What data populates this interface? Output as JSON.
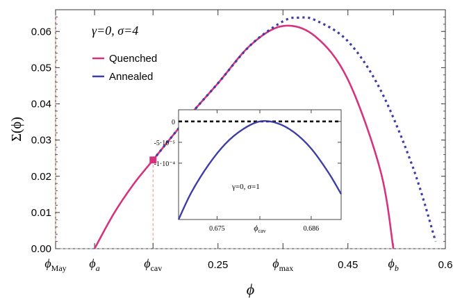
{
  "chart_data": {
    "type": "line",
    "ylabel": "Σ(ϕ)",
    "xlabel": "ϕ",
    "annotation": "γ=0, σ=4",
    "xlim": [
      0.0,
      0.6
    ],
    "ylim": [
      0.0,
      0.066
    ],
    "yticks": [
      0.0,
      0.01,
      0.02,
      0.03,
      0.04,
      0.05,
      0.06
    ],
    "ytick_labels": [
      "0.00",
      "0.01",
      "0.02",
      "0.03",
      "0.04",
      "0.05",
      "0.06"
    ],
    "xticks": [
      {
        "x": 0.0,
        "label": "ϕ",
        "sub": "May"
      },
      {
        "x": 0.06,
        "label": "ϕ",
        "sub": "a"
      },
      {
        "x": 0.15,
        "label": "ϕ",
        "sub": "cav"
      },
      {
        "x": 0.25,
        "label": "0.25",
        "sub": ""
      },
      {
        "x": 0.35,
        "label": "ϕ",
        "sub": "max"
      },
      {
        "x": 0.45,
        "label": "0.45",
        "sub": ""
      },
      {
        "x": 0.52,
        "label": "ϕ",
        "sub": "b"
      },
      {
        "x": 0.6,
        "label": "0.6",
        "sub": ""
      }
    ],
    "legend": {
      "position": "top-left",
      "entries": [
        {
          "name": "Quenched",
          "color": "#d6337f"
        },
        {
          "name": "Annealed",
          "color": "#3d3da8"
        }
      ]
    },
    "series": [
      {
        "name": "Quenched",
        "style": "solid",
        "color": "#d6337f",
        "x": [
          0.06,
          0.09,
          0.12,
          0.15,
          0.2,
          0.25,
          0.3,
          0.35,
          0.4,
          0.45,
          0.5,
          0.52
        ],
        "y": [
          0.0,
          0.0098,
          0.0178,
          0.0245,
          0.0355,
          0.0457,
          0.0562,
          0.0615,
          0.0586,
          0.0467,
          0.0216,
          0.0
        ]
      },
      {
        "name": "Annealed",
        "style": "dotted",
        "color": "#3d3da8",
        "x": [
          0.15,
          0.2,
          0.25,
          0.3,
          0.35,
          0.375,
          0.4,
          0.45,
          0.5,
          0.55,
          0.585
        ],
        "y": [
          0.0245,
          0.0355,
          0.0457,
          0.0562,
          0.0628,
          0.0638,
          0.0631,
          0.0573,
          0.0439,
          0.0225,
          0.002
        ]
      }
    ],
    "markers": [
      {
        "x": 0.15,
        "y": 0.0245,
        "shape": "square",
        "color": "#d6337f"
      }
    ],
    "vlines": [
      {
        "x": 0.0,
        "color": "#f08a7a",
        "style": "dashed",
        "to": 0.066
      },
      {
        "x": 0.15,
        "color": "#f08a7a",
        "style": "dashed",
        "to": 0.0245
      }
    ],
    "hlines": [
      {
        "y": 0.0,
        "color": "#999999",
        "style": "dashed"
      }
    ],
    "inset": {
      "annotation": "γ=0, σ=1",
      "xlim": [
        0.6705,
        0.6895
      ],
      "ylim": [
        -0.000235,
        2.8e-05
      ],
      "xticks": [
        {
          "x": 0.675,
          "label": "0.675",
          "sub": ""
        },
        {
          "x": 0.68,
          "label": "ϕ",
          "sub": "cav"
        },
        {
          "x": 0.686,
          "label": "0.686",
          "sub": ""
        }
      ],
      "yticks": [
        {
          "y": 0.0,
          "label": "0"
        },
        {
          "y": -5e-05,
          "label": "-5·10⁻⁵"
        },
        {
          "y": -0.0001,
          "label": "-1·10⁻⁴"
        }
      ],
      "series": [
        {
          "name": "Annealed",
          "color": "#3d3da8",
          "style": "solid",
          "x": [
            0.6705,
            0.672,
            0.674,
            0.676,
            0.678,
            0.68,
            0.682,
            0.684,
            0.686,
            0.688,
            0.6895
          ],
          "y": [
            -0.000235,
            -0.00017,
            -0.000104,
            -5.3e-05,
            -1.9e-05,
            0.0,
            -4e-06,
            -2.6e-05,
            -6.5e-05,
            -0.000122,
            -0.000174
          ]
        }
      ],
      "hlines": [
        {
          "y": 0.0,
          "color": "#000000",
          "style": "dashed"
        }
      ]
    }
  }
}
